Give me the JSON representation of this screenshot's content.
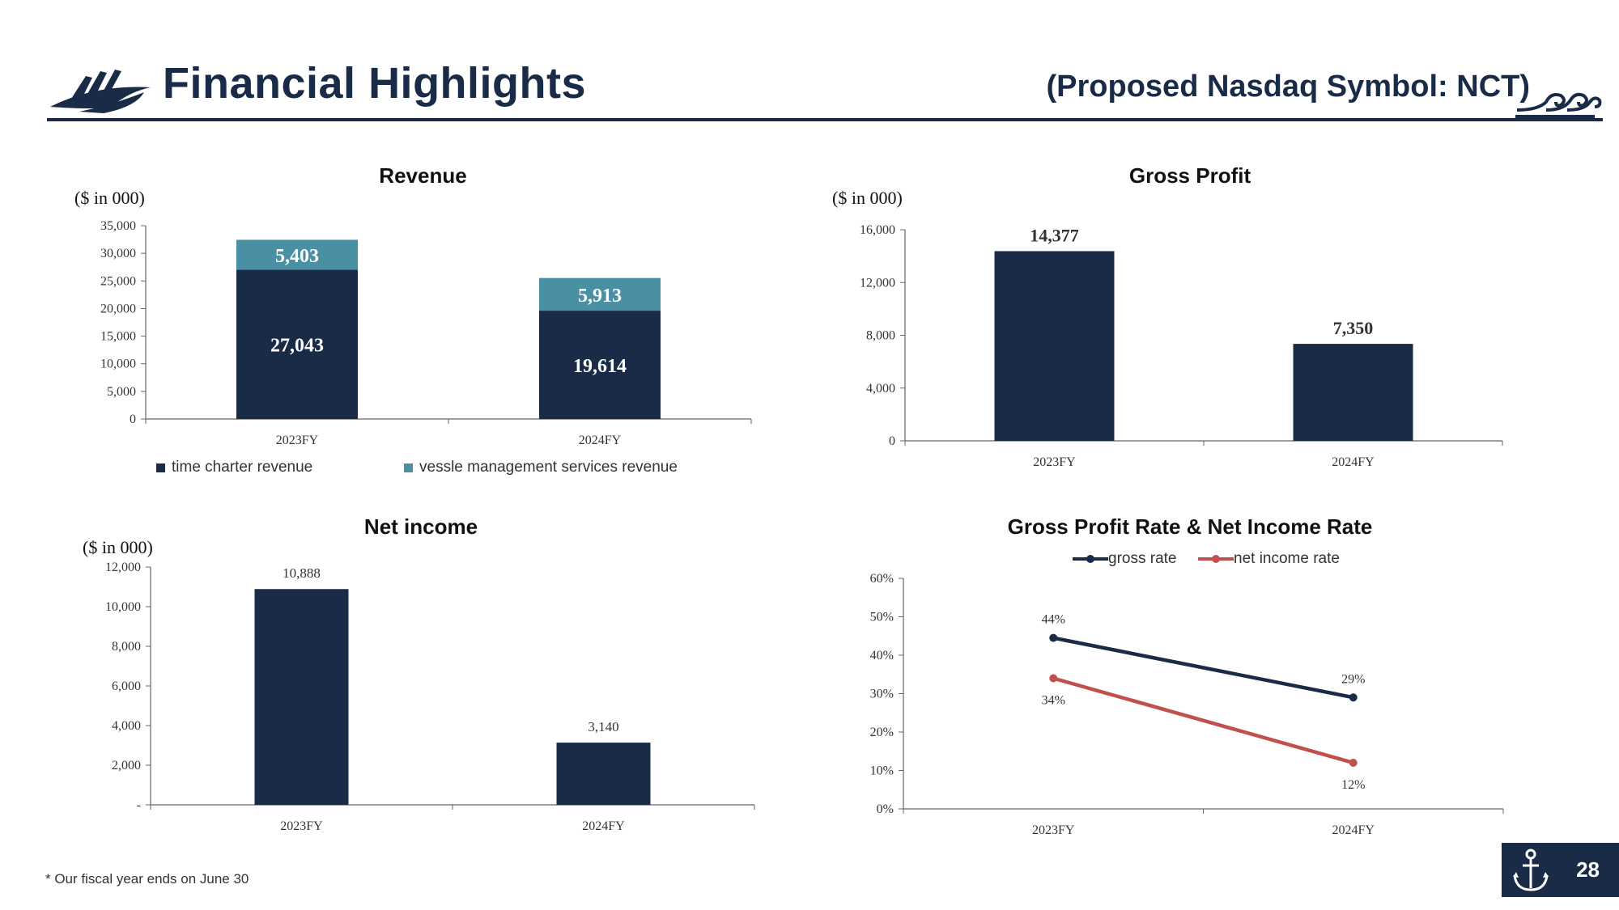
{
  "header": {
    "title": "Financial Highlights",
    "subtitle": "(Proposed Nasdaq Symbol:  NCT)",
    "logo_icon": "ship-icon",
    "waves_icon": "waves-icon"
  },
  "colors": {
    "navy": "#1a2b48",
    "teal": "#4a90a4",
    "red": "#c0504d"
  },
  "footnote": "* Our fiscal year ends on June 30",
  "page": {
    "number": "28",
    "icon": "anchor-icon"
  },
  "chart_data": [
    {
      "id": "revenue",
      "type": "bar",
      "stacked": true,
      "title": "Revenue",
      "unit_label": "($ in 000)",
      "categories": [
        "2023FY",
        "2024FY"
      ],
      "series": [
        {
          "name": "time charter revenue",
          "values": [
            27043,
            19614
          ],
          "labels": [
            "27,043",
            "19,614"
          ],
          "color": "#1a2b48"
        },
        {
          "name": "vessle management services revenue",
          "values": [
            5403,
            5913
          ],
          "labels": [
            "5,403",
            "5,913"
          ],
          "color": "#4a90a4"
        }
      ],
      "ylim": [
        0,
        35000
      ],
      "yticks": [
        0,
        5000,
        10000,
        15000,
        20000,
        25000,
        30000,
        35000
      ],
      "ytick_labels": [
        "0",
        "5,000",
        "10,000",
        "15,000",
        "20,000",
        "25,000",
        "30,000",
        "35,000"
      ],
      "legend": "bottom"
    },
    {
      "id": "gross_profit",
      "type": "bar",
      "title": "Gross Profit",
      "unit_label": "($ in 000)",
      "categories": [
        "2023FY",
        "2024FY"
      ],
      "values": [
        14377,
        7350
      ],
      "labels": [
        "14,377",
        "7,350"
      ],
      "ylim": [
        0,
        16000
      ],
      "yticks": [
        0,
        4000,
        8000,
        12000,
        16000
      ],
      "ytick_labels": [
        "0",
        "4,000",
        "8,000",
        "12,000",
        "16,000"
      ]
    },
    {
      "id": "net_income",
      "type": "bar",
      "title": "Net income",
      "unit_label": "($ in 000)",
      "categories": [
        "2023FY",
        "2024FY"
      ],
      "values": [
        10888,
        3140
      ],
      "labels": [
        "10,888",
        "3,140"
      ],
      "ylim": [
        0,
        12000
      ],
      "yticks": [
        0,
        2000,
        4000,
        6000,
        8000,
        10000,
        12000
      ],
      "ytick_labels": [
        "-",
        "2,000",
        "4,000",
        "6,000",
        "8,000",
        "10,000",
        "12,000"
      ]
    },
    {
      "id": "rates",
      "type": "line",
      "title": "Gross Profit Rate & Net Income Rate",
      "categories": [
        "2023FY",
        "2024FY"
      ],
      "series": [
        {
          "name": "gross rate",
          "values": [
            44.5,
            29
          ],
          "labels": [
            "44%",
            "29%"
          ],
          "color": "#1a2b48"
        },
        {
          "name": "net income rate",
          "values": [
            34,
            12
          ],
          "labels": [
            "34%",
            "12%"
          ],
          "color": "#c0504d"
        }
      ],
      "ylim": [
        0,
        60
      ],
      "yticks": [
        0,
        10,
        20,
        30,
        40,
        50,
        60
      ],
      "ytick_labels": [
        "0%",
        "10%",
        "20%",
        "30%",
        "40%",
        "50%",
        "60%"
      ],
      "legend": "top"
    }
  ]
}
